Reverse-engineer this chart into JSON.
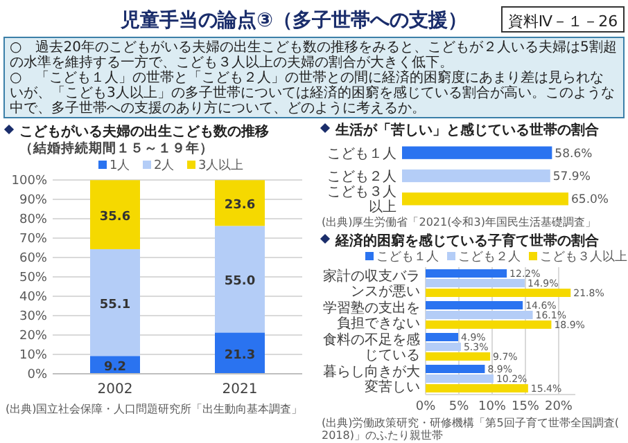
{
  "chart_data": [
    {
      "type": "other",
      "title": "児童手当の論点③（多子世帯への支援）",
      "annotations": [
        "資料Ⅳ－１－26",
        "○　過去20年のこどもがいる夫婦の出生こども数の推移をみると、こどもが２人いる夫婦は5割超の水準を維持する一方で、こども３人以上の夫婦の割合が大きく低下。",
        "○　「こども１人」の世帯と「こども２人」の世帯との間に経済的困窮度にあまり差は見られないが、「こども3人以上」の多子世帯については経済的困窮を感じている割合が高い。このような中で、多子世帯への支援のあり方について、どのように考えるか。"
      ]
    },
    {
      "type": "bar",
      "stacked": true,
      "title": "こどもがいる夫婦の出生こども数の推移",
      "subtitle": "（結婚持続期間１５～１９年）",
      "categories": [
        "2002",
        "2021"
      ],
      "series": [
        {
          "name": "1人",
          "color": "#2a73f0",
          "values": [
            9.2,
            21.3
          ],
          "value_labels": [
            "9.2",
            "21.3"
          ]
        },
        {
          "name": "2人",
          "color": "#b4cdf7",
          "values": [
            55.1,
            55.0
          ],
          "value_labels": [
            "55.1",
            "55.0"
          ]
        },
        {
          "name": "3人以上",
          "color": "#f5d900",
          "values": [
            35.6,
            23.6
          ],
          "value_labels": [
            "35.6",
            "23.6"
          ]
        }
      ],
      "ylim": [
        0,
        100
      ],
      "yticks": [
        {
          "value": 0,
          "label": "0%"
        },
        {
          "value": 10,
          "label": "10%"
        },
        {
          "value": 20,
          "label": "20%"
        },
        {
          "value": 30,
          "label": "30%"
        },
        {
          "value": 40,
          "label": "40%"
        },
        {
          "value": 50,
          "label": "50%"
        },
        {
          "value": 60,
          "label": "60%"
        },
        {
          "value": 70,
          "label": "70%"
        },
        {
          "value": 80,
          "label": "80%"
        },
        {
          "value": 90,
          "label": "90%"
        },
        {
          "value": 100,
          "label": "100%"
        }
      ],
      "grid": "y",
      "legend": "top",
      "annotations": [
        "(出典)国立社会保障・人口問題研究所「出生動向基本調査」"
      ]
    },
    {
      "type": "bar",
      "orientation": "horizontal",
      "title": "生活が「苦しい」と感じている世帯の割合",
      "categories": [
        "こども１人",
        "こども２人",
        "こども３人以上"
      ],
      "values": [
        58.6,
        57.9,
        65.0
      ],
      "colors": [
        "#2a73f0",
        "#b4cdf7",
        "#f5d900"
      ],
      "value_labels": [
        "58.6%",
        "57.9%",
        "65.0%"
      ],
      "annotations": [
        "(出典)厚生労働省「2021(令和3)年国民生活基礎調査」"
      ]
    },
    {
      "type": "bar",
      "orientation": "horizontal",
      "title": "経済的困窮を感じている子育て世帯の割合",
      "categories": [
        "家計の収支バランスが悪い",
        "学習塾の支出を負担できない",
        "食料の不足を感じている",
        "暮らし向きが大変苦しい"
      ],
      "series": [
        {
          "name": "こども１人",
          "color": "#2a73f0",
          "values": [
            12.2,
            14.6,
            4.9,
            8.9
          ],
          "value_labels": [
            "12.2%",
            "14.6%",
            "4.9%",
            "8.9%"
          ]
        },
        {
          "name": "こども２人",
          "color": "#b4cdf7",
          "values": [
            14.9,
            16.1,
            5.3,
            10.2
          ],
          "value_labels": [
            "14.9%",
            "16.1%",
            "5.3%",
            "10.2%"
          ]
        },
        {
          "name": "こども３人以上",
          "color": "#f5d900",
          "values": [
            21.8,
            18.9,
            9.7,
            15.4
          ],
          "value_labels": [
            "21.8%",
            "18.9%",
            "9.7%",
            "15.4%"
          ]
        }
      ],
      "xlim": [
        0,
        22.5
      ],
      "xticks": [
        {
          "value": 0,
          "label": "0%"
        },
        {
          "value": 5,
          "label": "5%"
        },
        {
          "value": 10,
          "label": "10%"
        },
        {
          "value": 15,
          "label": "15%"
        },
        {
          "value": 20,
          "label": "20%"
        }
      ],
      "grid": "x",
      "legend": "top",
      "annotations": [
        "(出典)労働政策研究・研修機構「第5回子育て世帯全国調査(2018)」のふたり親世帯"
      ]
    }
  ]
}
